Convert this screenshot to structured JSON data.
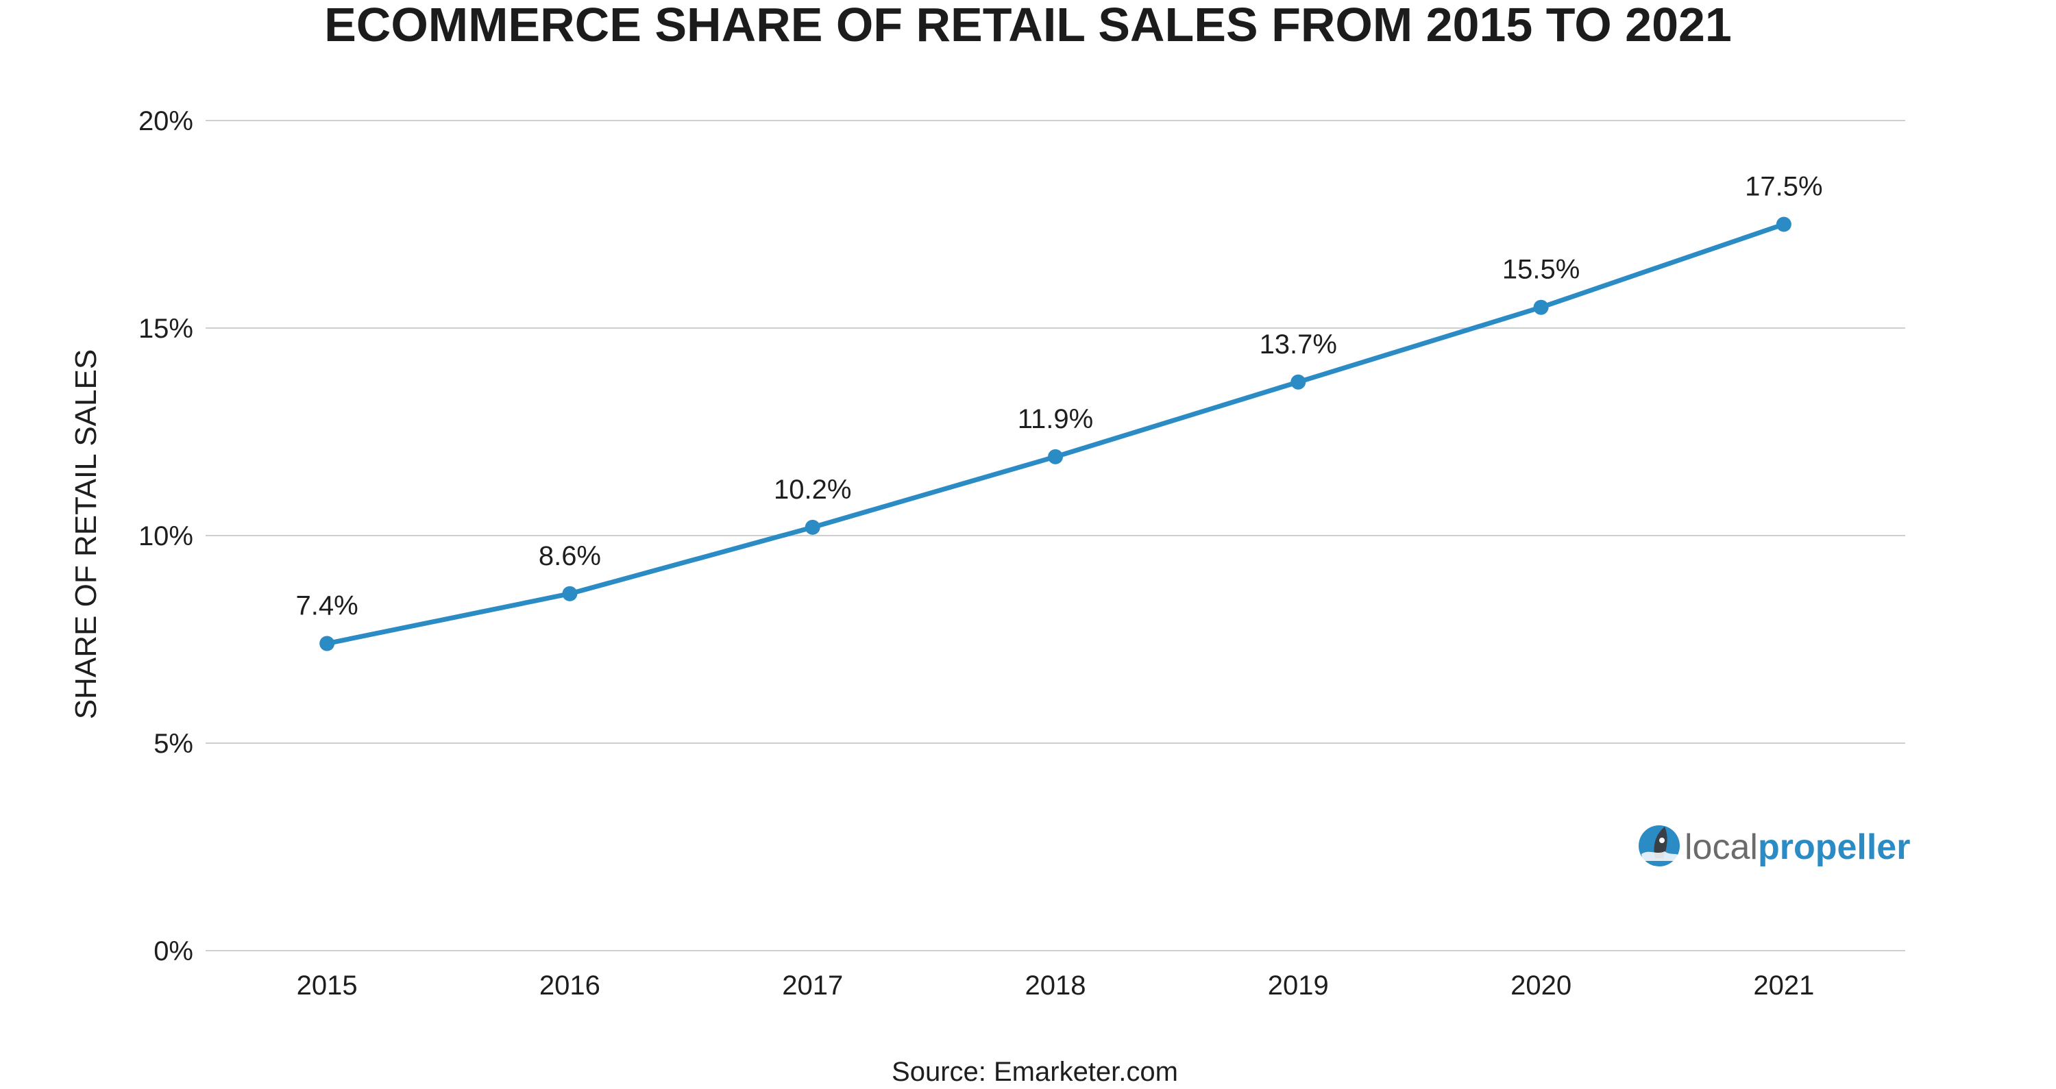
{
  "chart_data": {
    "type": "line",
    "title": "ECOMMERCE SHARE OF RETAIL SALES FROM 2015 TO 2021",
    "ylabel": "SHARE OF  RETAIL SALES",
    "xlabel": "",
    "categories": [
      "2015",
      "2016",
      "2017",
      "2018",
      "2019",
      "2020",
      "2021"
    ],
    "values": [
      7.4,
      8.6,
      10.2,
      11.9,
      13.7,
      15.5,
      17.5
    ],
    "data_labels": [
      "7.4%",
      "8.6%",
      "10.2%",
      "11.9%",
      "13.7%",
      "15.5%",
      "17.5%"
    ],
    "ylim": [
      0,
      20
    ],
    "y_ticks": [
      0,
      5,
      10,
      15,
      20
    ],
    "y_tick_labels": [
      "0%",
      "5%",
      "10%",
      "15%",
      "20%"
    ],
    "grid": true,
    "line_color": "#2b8bc4",
    "source": "Source: Emarketer.com"
  },
  "logo": {
    "part1": "local",
    "part2": "propeller",
    "icon": "rocket-icon",
    "color": "#2b8bc4"
  }
}
